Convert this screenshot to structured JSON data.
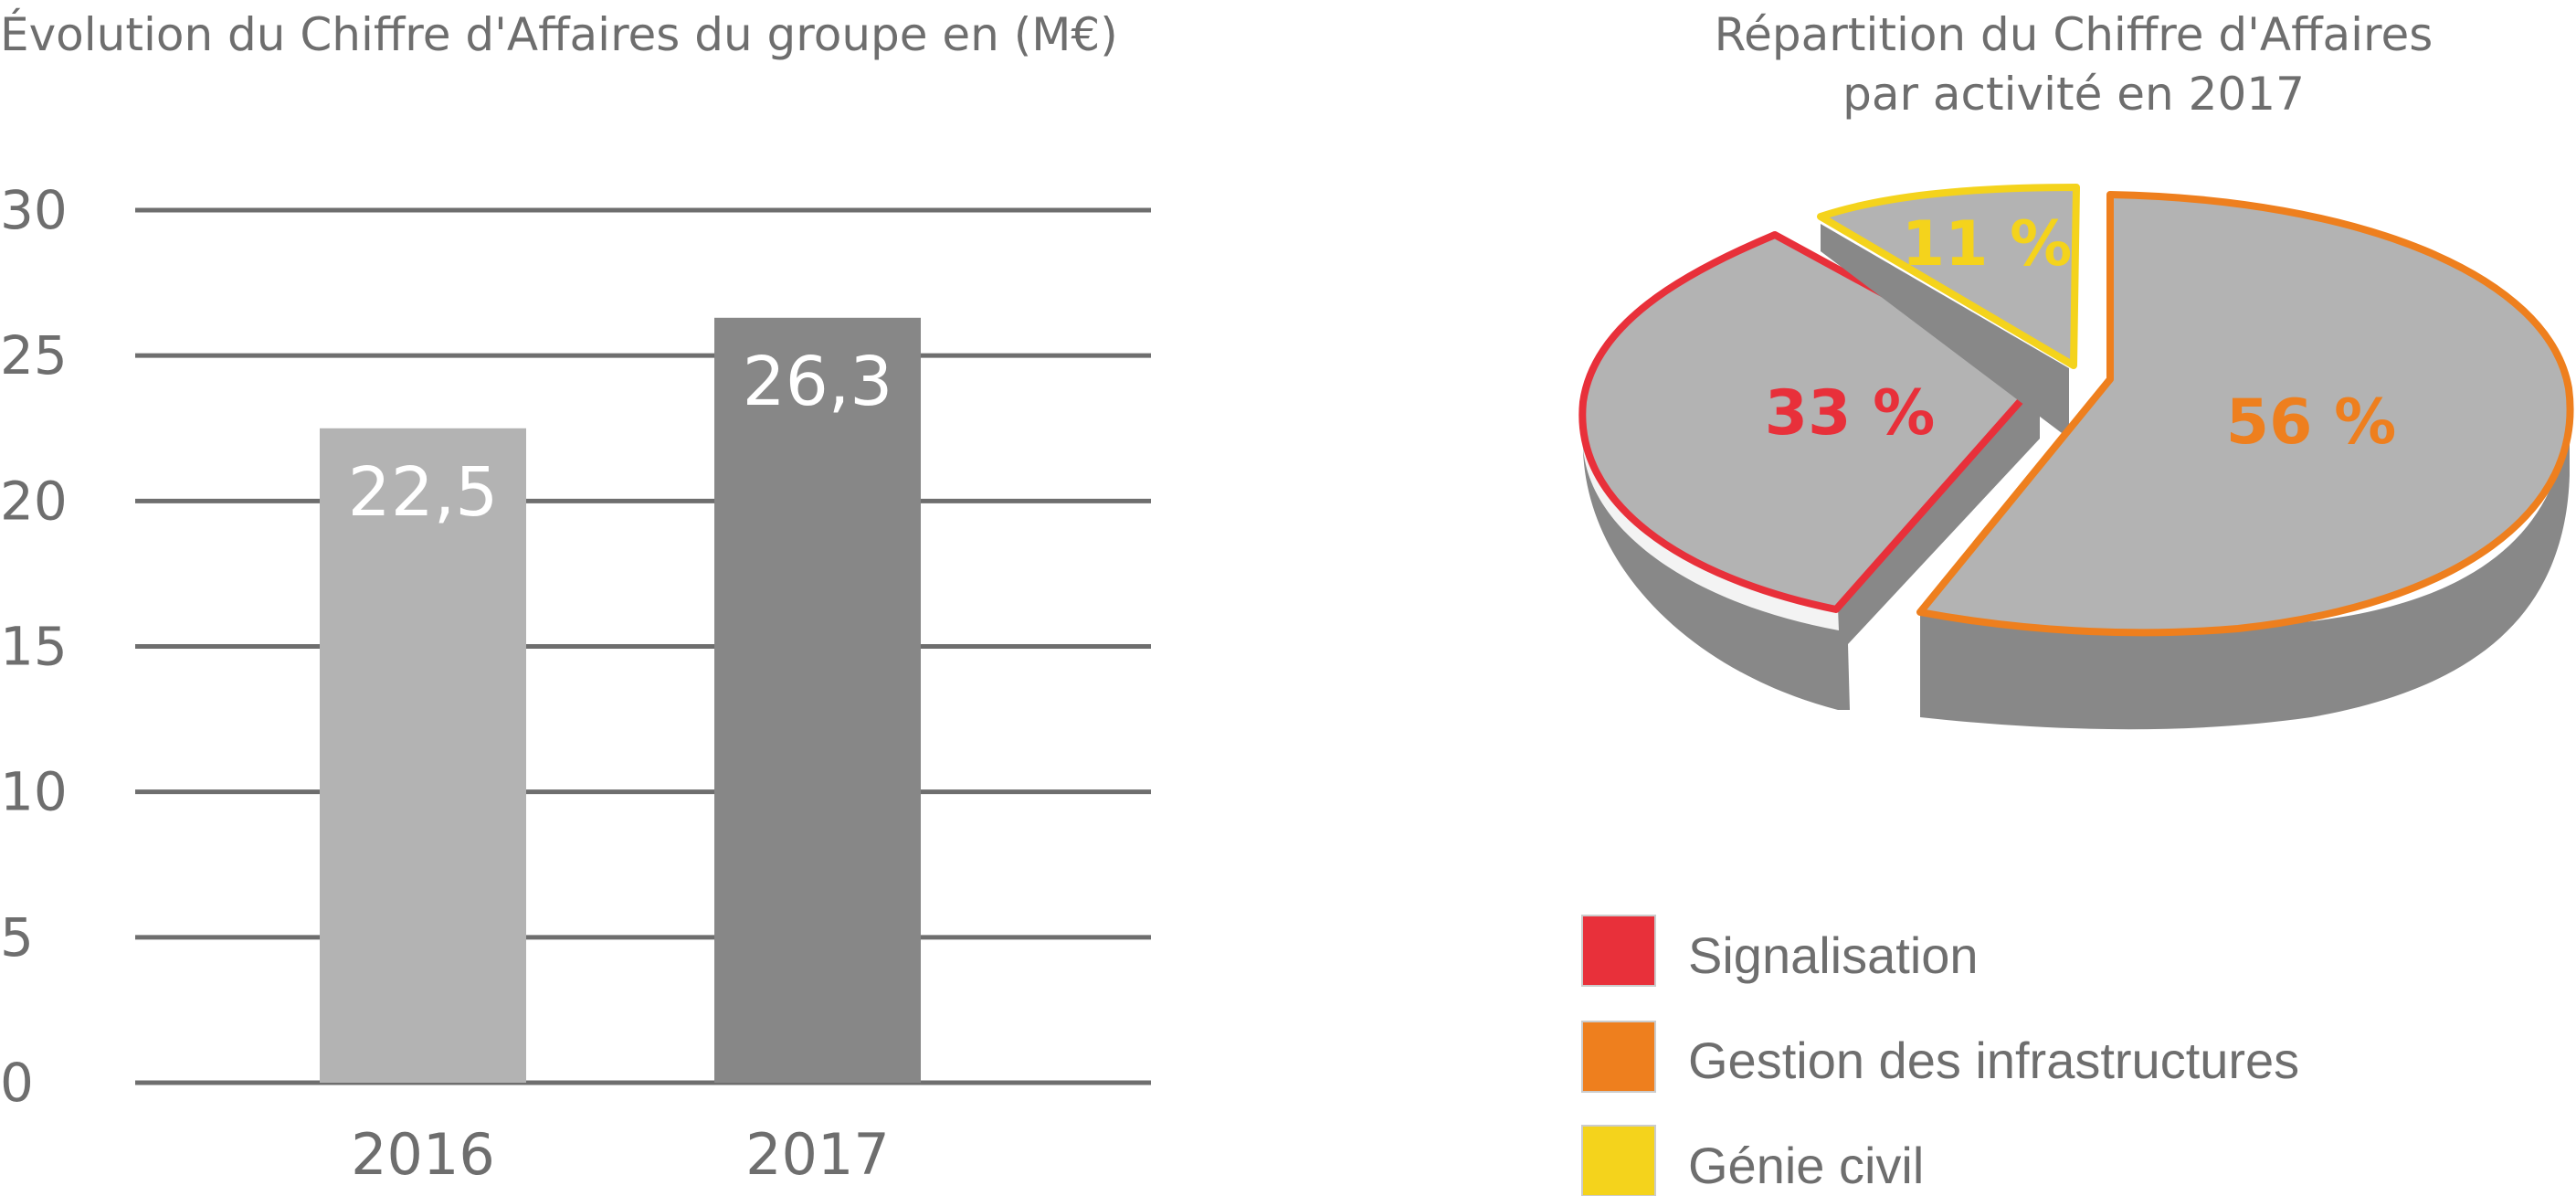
{
  "chart_data": [
    {
      "type": "bar",
      "title": "Évolution du Chiffre d'Affaires du groupe en (M€)",
      "categories": [
        "2016",
        "2017"
      ],
      "values": [
        22.5,
        26.3
      ],
      "value_labels": [
        "22,5",
        "26,3"
      ],
      "bar_colors": [
        "#b3b3b3",
        "#878787"
      ],
      "y_ticks": [
        "0",
        "5",
        "10",
        "15",
        "20",
        "25",
        "30"
      ],
      "ylim": [
        0,
        30
      ],
      "grid": true,
      "gridline_color": "#6e6e6e"
    },
    {
      "type": "pie",
      "title_line1": "Répartition du Chiffre d'Affaires",
      "title_line2": "par activité en 2017",
      "slices": [
        {
          "name": "Signalisation",
          "value": 33,
          "label": "33 %",
          "color": "#e8303a"
        },
        {
          "name": "Gestion des infrastructures",
          "value": 56,
          "label": "56 %",
          "color": "#ee7f1e"
        },
        {
          "name": "Génie civil",
          "value": 11,
          "label": "11 %",
          "color": "#f4d31c"
        }
      ],
      "slice_fill": "#b3b3b3",
      "slice_side": "#888888",
      "legend_placement": "bottom"
    }
  ]
}
